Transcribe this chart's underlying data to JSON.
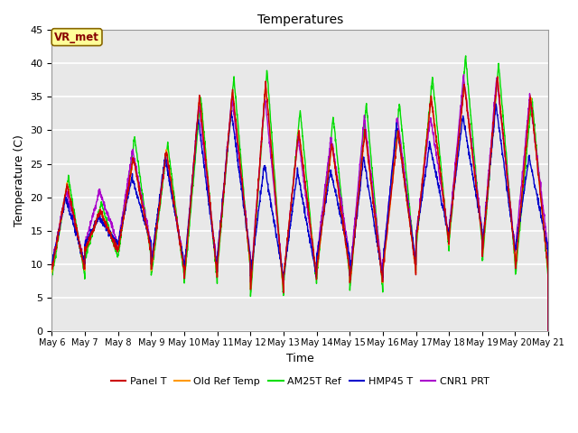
{
  "title": "Temperatures",
  "xlabel": "Time",
  "ylabel": "Temperature (C)",
  "ylim": [
    0,
    45
  ],
  "n_days": 15,
  "pts_per_day": 144,
  "series_colors": {
    "Panel T": "#cc0000",
    "Old Ref Temp": "#ff9900",
    "AM25T Ref": "#00dd00",
    "HMP45 T": "#0000cc",
    "CNR1 PRT": "#aa00cc"
  },
  "annotation_text": "VR_met",
  "annotation_bg": "#ffff99",
  "annotation_border": "#886600",
  "annotation_text_color": "#880000",
  "x_tick_labels": [
    "May 6",
    "May 7",
    "May 8",
    "May 9",
    "May 10",
    "May 11",
    "May 12",
    "May 13",
    "May 14",
    "May 15",
    "May 16",
    "May 17",
    "May 18",
    "May 19",
    "May 20",
    "May 21"
  ],
  "plot_bg_color": "#e8e8e8",
  "grid_color": "#ffffff",
  "daily_peaks_panel": [
    22,
    18,
    26,
    27,
    35,
    36,
    37,
    30,
    28,
    30,
    30,
    35,
    37,
    38,
    35
  ],
  "daily_mins_panel": [
    9,
    12,
    12,
    9,
    8,
    10,
    6,
    8,
    9,
    7,
    9,
    13,
    14,
    11,
    9
  ],
  "daily_peaks_green": [
    23,
    19,
    29,
    28,
    35,
    38,
    39,
    33,
    32,
    34,
    34,
    38,
    41,
    40,
    35
  ],
  "daily_mins_green": [
    8,
    11,
    11,
    8,
    7,
    9,
    5,
    7,
    8,
    6,
    9,
    12,
    13,
    10,
    8
  ],
  "daily_peaks_blue": [
    20,
    17,
    23,
    26,
    32,
    33,
    25,
    24,
    24,
    26,
    31,
    28,
    32,
    34,
    26
  ],
  "daily_mins_blue": [
    10,
    13,
    13,
    10,
    9,
    11,
    8,
    8,
    11,
    8,
    10,
    14,
    15,
    12,
    12
  ],
  "daily_peaks_purple": [
    21,
    21,
    27,
    26,
    34,
    35,
    35,
    29,
    29,
    32,
    32,
    32,
    38,
    38,
    35
  ],
  "daily_mins_purple": [
    10,
    13,
    13,
    10,
    9,
    11,
    7,
    8,
    11,
    8,
    10,
    14,
    15,
    12,
    12
  ],
  "figsize": [
    6.4,
    4.8
  ],
  "dpi": 100
}
